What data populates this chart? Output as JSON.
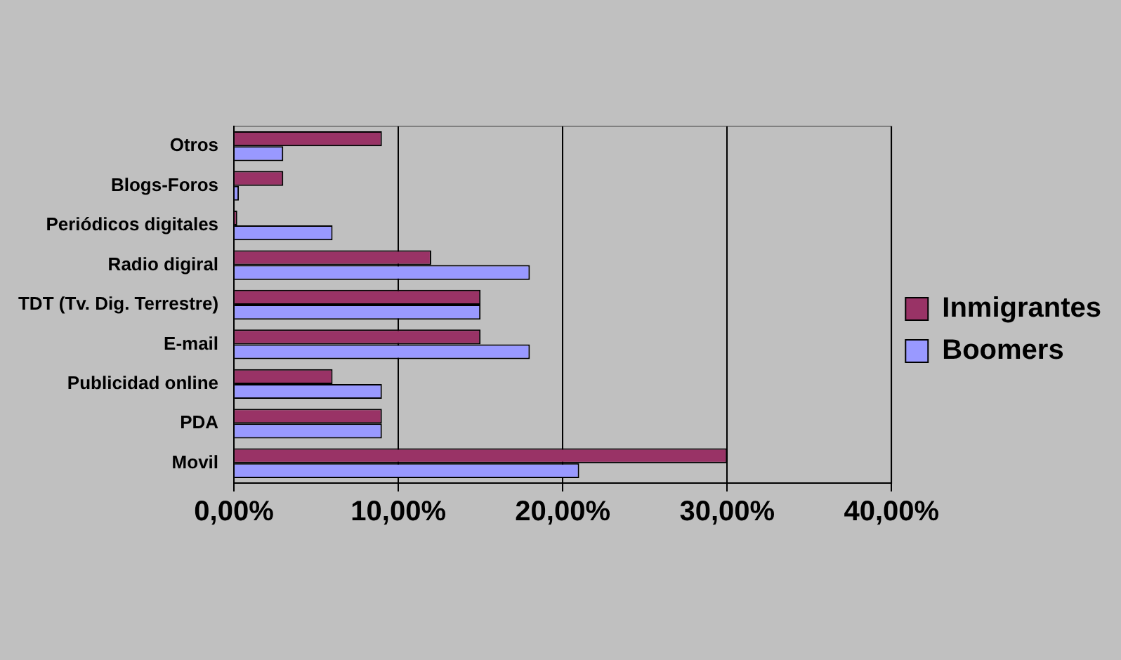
{
  "chart_data": {
    "type": "bar",
    "orientation": "horizontal",
    "categories": [
      "Otros",
      "Blogs-Foros",
      "Periódicos digitales",
      "Radio digiral",
      "TDT (Tv. Dig. Terrestre)",
      "E-mail",
      "Publicidad online",
      "PDA",
      "Movil"
    ],
    "series": [
      {
        "name": "Inmigrantes",
        "color": "#993366",
        "values": [
          9,
          3,
          0.2,
          12,
          15,
          15,
          6,
          9,
          30
        ]
      },
      {
        "name": "Boomers",
        "color": "#9999ff",
        "values": [
          3,
          0.3,
          6,
          18,
          15,
          18,
          9,
          9,
          21
        ]
      }
    ],
    "xlim": [
      0,
      40
    ],
    "xticks": [
      {
        "value": 0,
        "label": "0,00%"
      },
      {
        "value": 10,
        "label": "10,00%"
      },
      {
        "value": 20,
        "label": "20,00%"
      },
      {
        "value": 30,
        "label": "30,00%"
      },
      {
        "value": 40,
        "label": "40,00%"
      }
    ],
    "grid": "x",
    "legend": "right"
  }
}
